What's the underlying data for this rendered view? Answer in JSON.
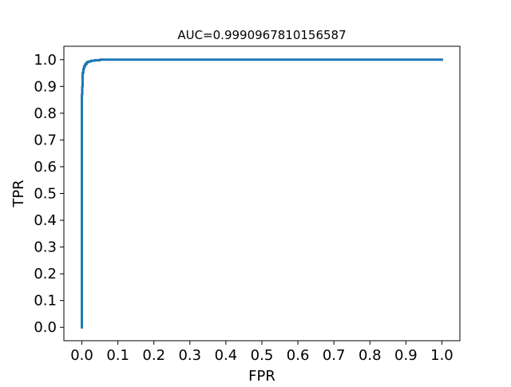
{
  "chart_data": {
    "type": "line",
    "title": "AUC=0.9990967810156587",
    "xlabel": "FPR",
    "ylabel": "TPR",
    "xlim": [
      -0.05,
      1.05
    ],
    "ylim": [
      -0.05,
      1.05
    ],
    "grid": false,
    "legend": "none",
    "x_ticks": [
      0.0,
      0.1,
      0.2,
      0.3,
      0.4,
      0.5,
      0.6,
      0.7,
      0.8,
      0.9,
      1.0
    ],
    "y_ticks": [
      0.0,
      0.1,
      0.2,
      0.3,
      0.4,
      0.5,
      0.6,
      0.7,
      0.8,
      0.9,
      1.0
    ],
    "tick_labels": [
      "0.0",
      "0.1",
      "0.2",
      "0.3",
      "0.4",
      "0.5",
      "0.6",
      "0.7",
      "0.8",
      "0.9",
      "1.0"
    ],
    "series": [
      {
        "color": "#1f77b4",
        "x": [
          0.0,
          0.0,
          0.001,
          0.001,
          0.002,
          0.002,
          0.004,
          0.004,
          0.006,
          0.006,
          0.009,
          0.009,
          0.013,
          0.013,
          0.018,
          0.018,
          0.025,
          0.025,
          0.035,
          0.035,
          0.05,
          0.05,
          1.0
        ],
        "y": [
          0.0,
          0.87,
          0.87,
          0.9,
          0.9,
          0.95,
          0.95,
          0.965,
          0.965,
          0.975,
          0.975,
          0.983,
          0.983,
          0.99,
          0.99,
          0.993,
          0.993,
          0.996,
          0.996,
          0.998,
          0.998,
          1.0,
          1.0
        ]
      }
    ]
  }
}
